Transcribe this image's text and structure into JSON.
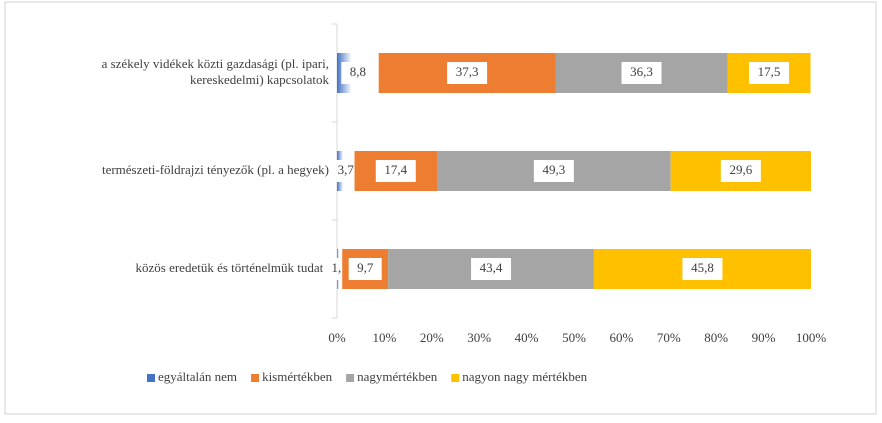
{
  "chart_data": {
    "type": "stacked-barh",
    "categories": [
      "a székely vidékek közti gazdasági (pl. ipari, kereskedelmi) kapcsolatok",
      "természeti-földrajzi tényezők (pl. a hegyek)",
      "közös eredetük és történelmük tudata"
    ],
    "series": [
      {
        "name": "egyáltalán nem",
        "color": "#4472c4",
        "values": [
          8.8,
          3.7,
          1.1
        ],
        "value_labels": [
          "8,8",
          "3,7",
          "1,1"
        ]
      },
      {
        "name": "kismértékben",
        "color": "#ed7d31",
        "values": [
          37.3,
          17.4,
          9.7
        ],
        "value_labels": [
          "37,3",
          "17,4",
          "9,7"
        ]
      },
      {
        "name": "nagymértékben",
        "color": "#a5a5a5",
        "values": [
          36.3,
          49.3,
          43.4
        ],
        "value_labels": [
          "36,3",
          "49,3",
          "43,4"
        ]
      },
      {
        "name": "nagyon nagy mértékben",
        "color": "#ffc000",
        "values": [
          17.5,
          29.6,
          45.8
        ],
        "value_labels": [
          "17,5",
          "29,6",
          "45,8"
        ]
      }
    ],
    "xlim": [
      0,
      100
    ],
    "xticks": [
      {
        "value": 0,
        "label": "0%"
      },
      {
        "value": 10,
        "label": "10%"
      },
      {
        "value": 20,
        "label": "20%"
      },
      {
        "value": 30,
        "label": "30%"
      },
      {
        "value": 40,
        "label": "40%"
      },
      {
        "value": 50,
        "label": "50%"
      },
      {
        "value": 60,
        "label": "60%"
      },
      {
        "value": 70,
        "label": "70%"
      },
      {
        "value": 80,
        "label": "80%"
      },
      {
        "value": 90,
        "label": "90%"
      },
      {
        "value": 100,
        "label": "100%"
      }
    ],
    "legend": "bottom"
  }
}
